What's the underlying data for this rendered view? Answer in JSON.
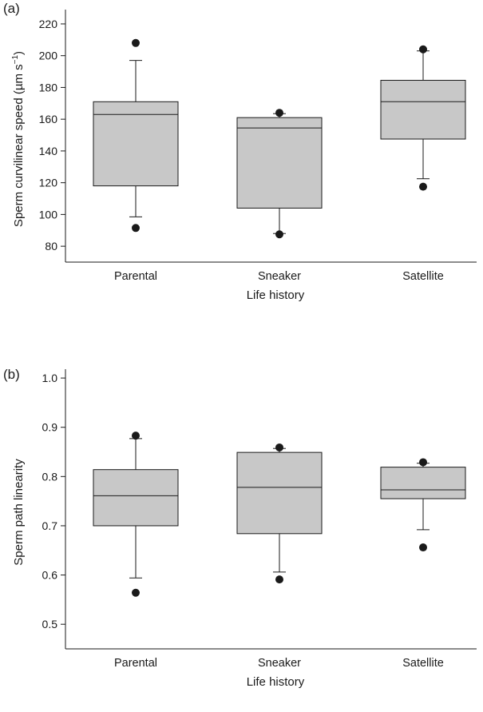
{
  "chart_data": [
    {
      "type": "box",
      "panel_label": "(a)",
      "xlabel": "Life history",
      "ylabel_parts": [
        "Sperm curvilinear speed (µm s",
        "−1",
        ")"
      ],
      "ylim": [
        70,
        225
      ],
      "yticks": [
        80,
        100,
        120,
        140,
        160,
        180,
        200,
        220
      ],
      "categories": [
        "Parental",
        "Sneaker",
        "Satellite"
      ],
      "boxes": [
        {
          "whisker_low": 98.5,
          "q1": 118,
          "median": 163,
          "q3": 171,
          "whisker_high": 197,
          "outliers": [
            91.5,
            208
          ]
        },
        {
          "whisker_low": 88,
          "q1": 104,
          "median": 154.5,
          "q3": 161,
          "whisker_high": 163.5,
          "outliers": [
            87.5,
            164
          ]
        },
        {
          "whisker_low": 122.5,
          "q1": 147.5,
          "median": 171,
          "q3": 184.5,
          "whisker_high": 203,
          "outliers": [
            117.5,
            204
          ]
        }
      ]
    },
    {
      "type": "box",
      "panel_label": "(b)",
      "xlabel": "Life history",
      "ylabel_parts": [
        "Sperm path linearity"
      ],
      "ylim": [
        0.45,
        1.005
      ],
      "yticks": [
        "0.5",
        "0.6",
        "0.7",
        "0.8",
        "0.9",
        "1.0"
      ],
      "categories": [
        "Parental",
        "Sneaker",
        "Satellite"
      ],
      "boxes": [
        {
          "whisker_low": 0.594,
          "q1": 0.7,
          "median": 0.761,
          "q3": 0.814,
          "whisker_high": 0.877,
          "outliers": [
            0.564,
            0.883
          ]
        },
        {
          "whisker_low": 0.606,
          "q1": 0.684,
          "median": 0.778,
          "q3": 0.849,
          "whisker_high": 0.857,
          "outliers": [
            0.591,
            0.859
          ]
        },
        {
          "whisker_low": 0.692,
          "q1": 0.755,
          "median": 0.773,
          "q3": 0.819,
          "whisker_high": 0.827,
          "outliers": [
            0.656,
            0.829
          ]
        }
      ]
    }
  ]
}
